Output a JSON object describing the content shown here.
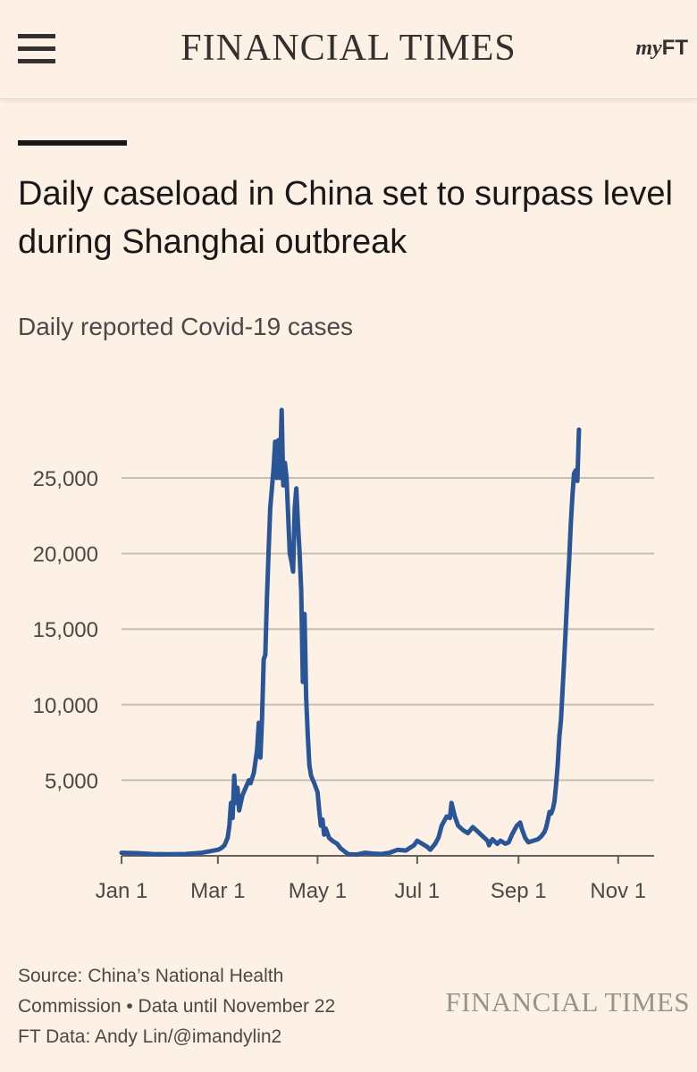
{
  "header": {
    "brand": "FINANCIAL TIMES",
    "myft_my": "my",
    "myft_ft": "FT"
  },
  "article": {
    "title": "Daily caseload in China set to surpass level during Shanghai outbreak",
    "subtitle": "Daily reported Covid-19 cases"
  },
  "chart_data": {
    "type": "line",
    "title": "Daily caseload in China set to surpass level during Shanghai outbreak",
    "subtitle": "Daily reported Covid-19 cases",
    "xlabel": "",
    "ylabel": "",
    "ylim": [
      0,
      25000
    ],
    "yticks": [
      5000,
      10000,
      15000,
      20000,
      25000
    ],
    "ytick_labels": [
      "5,000",
      "10,000",
      "15,000",
      "20,000",
      "25,000"
    ],
    "xlim_day_of_year": [
      1,
      327
    ],
    "xticks": [
      {
        "label": "Jan 1",
        "day": 1
      },
      {
        "label": "Mar 1",
        "day": 60
      },
      {
        "label": "May 1",
        "day": 121
      },
      {
        "label": "Jul 1",
        "day": 182
      },
      {
        "label": "Sep 1",
        "day": 244
      },
      {
        "label": "Nov 1",
        "day": 305
      }
    ],
    "grid": true,
    "line_color": "#2a5597",
    "series": [
      {
        "name": "Daily reported Covid-19 cases",
        "points": [
          [
            1,
            200
          ],
          [
            10,
            180
          ],
          [
            20,
            120
          ],
          [
            30,
            100
          ],
          [
            40,
            120
          ],
          [
            50,
            200
          ],
          [
            55,
            300
          ],
          [
            60,
            400
          ],
          [
            62,
            500
          ],
          [
            64,
            700
          ],
          [
            66,
            1200
          ],
          [
            67,
            2000
          ],
          [
            68,
            3500
          ],
          [
            69,
            2500
          ],
          [
            70,
            5300
          ],
          [
            71,
            3500
          ],
          [
            72,
            4500
          ],
          [
            73,
            3000
          ],
          [
            75,
            4000
          ],
          [
            77,
            4500
          ],
          [
            79,
            5000
          ],
          [
            80,
            4800
          ],
          [
            82,
            5500
          ],
          [
            84,
            7000
          ],
          [
            85,
            8800
          ],
          [
            86,
            6500
          ],
          [
            87,
            9000
          ],
          [
            88,
            13000
          ],
          [
            89,
            13300
          ],
          [
            90,
            17000
          ],
          [
            91,
            20000
          ],
          [
            92,
            23000
          ],
          [
            94,
            25500
          ],
          [
            95,
            27400
          ],
          [
            96,
            25000
          ],
          [
            97,
            27500
          ],
          [
            98,
            25000
          ],
          [
            99,
            29500
          ],
          [
            100,
            24500
          ],
          [
            101,
            26000
          ],
          [
            102,
            25000
          ],
          [
            104,
            20000
          ],
          [
            105,
            19500
          ],
          [
            106,
            18800
          ],
          [
            107,
            23000
          ],
          [
            108,
            24300
          ],
          [
            109,
            22000
          ],
          [
            110,
            20000
          ],
          [
            111,
            17500
          ],
          [
            112,
            11500
          ],
          [
            113,
            16000
          ],
          [
            114,
            10500
          ],
          [
            115,
            8000
          ],
          [
            116,
            6000
          ],
          [
            117,
            5300
          ],
          [
            119,
            4800
          ],
          [
            121,
            4200
          ],
          [
            122,
            3000
          ],
          [
            123,
            2000
          ],
          [
            124,
            2400
          ],
          [
            125,
            1400
          ],
          [
            126,
            1800
          ],
          [
            128,
            1200
          ],
          [
            130,
            1000
          ],
          [
            133,
            800
          ],
          [
            135,
            500
          ],
          [
            138,
            250
          ],
          [
            140,
            100
          ],
          [
            145,
            80
          ],
          [
            150,
            200
          ],
          [
            155,
            150
          ],
          [
            160,
            120
          ],
          [
            165,
            200
          ],
          [
            170,
            400
          ],
          [
            175,
            350
          ],
          [
            180,
            700
          ],
          [
            182,
            1000
          ],
          [
            185,
            800
          ],
          [
            188,
            600
          ],
          [
            190,
            400
          ],
          [
            193,
            800
          ],
          [
            195,
            1200
          ],
          [
            197,
            2000
          ],
          [
            200,
            2600
          ],
          [
            202,
            2500
          ],
          [
            203,
            3500
          ],
          [
            205,
            2600
          ],
          [
            207,
            2000
          ],
          [
            210,
            1700
          ],
          [
            213,
            1500
          ],
          [
            216,
            1900
          ],
          [
            219,
            1600
          ],
          [
            222,
            1300
          ],
          [
            225,
            1000
          ],
          [
            226,
            700
          ],
          [
            228,
            1100
          ],
          [
            231,
            800
          ],
          [
            233,
            1000
          ],
          [
            236,
            800
          ],
          [
            238,
            900
          ],
          [
            240,
            1400
          ],
          [
            243,
            2000
          ],
          [
            245,
            2200
          ],
          [
            246,
            1800
          ],
          [
            248,
            1200
          ],
          [
            250,
            900
          ],
          [
            253,
            1000
          ],
          [
            256,
            1100
          ],
          [
            258,
            1300
          ],
          [
            260,
            1600
          ],
          [
            261,
            1900
          ],
          [
            262,
            2400
          ],
          [
            263,
            2900
          ],
          [
            264,
            2800
          ],
          [
            265,
            3100
          ],
          [
            266,
            3600
          ],
          [
            267,
            4700
          ],
          [
            268,
            6000
          ],
          [
            269,
            7900
          ],
          [
            270,
            9000
          ],
          [
            271,
            11000
          ],
          [
            272,
            13000
          ],
          [
            273,
            15300
          ],
          [
            274,
            17500
          ],
          [
            275,
            19500
          ],
          [
            276,
            22000
          ],
          [
            277,
            23800
          ],
          [
            278,
            25300
          ],
          [
            279,
            25500
          ],
          [
            280,
            24800
          ],
          [
            281,
            28200
          ]
        ]
      }
    ]
  },
  "footer": {
    "source_lines": [
      "Source: China’s National Health",
      "Commission • Data until November 22",
      "FT Data: Andy Lin/@imandylin2"
    ],
    "brand": "FINANCIAL TIMES"
  }
}
